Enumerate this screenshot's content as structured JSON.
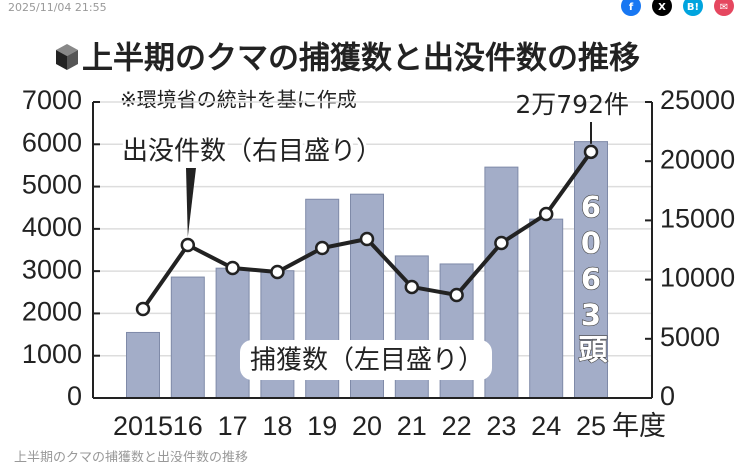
{
  "header": {
    "timestamp": "2025/11/04 21:55",
    "share_buttons": [
      "f",
      "X",
      "B!",
      "✉"
    ]
  },
  "chart_data": {
    "type": "bar_line",
    "title": "上半期のクマの捕獲数と出没件数の推移",
    "subtitle": "※環境省の統計を基に作成",
    "x_label": "年度",
    "categories": [
      "2015",
      "16",
      "17",
      "18",
      "19",
      "20",
      "21",
      "22",
      "23",
      "24",
      "25"
    ],
    "series": [
      {
        "name": "捕獲数（左目盛り）",
        "type": "bar",
        "color": "#a3adc8",
        "axis": "y",
        "values": [
          1550,
          2860,
          3070,
          3010,
          4700,
          4820,
          3360,
          3170,
          5460,
          4230,
          6063
        ],
        "value_labels": [
          null,
          null,
          null,
          null,
          null,
          null,
          null,
          null,
          null,
          null,
          "6063頭"
        ]
      },
      {
        "name": "出没件数（右目盛り）",
        "type": "line",
        "color": "#222222",
        "axis": "y2",
        "values": [
          7520,
          12920,
          10980,
          10640,
          12670,
          13430,
          9380,
          8700,
          13090,
          15540,
          20792
        ],
        "value_labels": [
          null,
          null,
          null,
          null,
          null,
          null,
          null,
          null,
          null,
          null,
          "2万792件"
        ]
      }
    ],
    "ylim": [
      0,
      7000
    ],
    "yticks": [
      0,
      1000,
      2000,
      3000,
      4000,
      5000,
      6000,
      7000
    ],
    "y2lim": [
      0,
      25000
    ],
    "y2ticks": [
      0,
      5000,
      10000,
      15000,
      20000,
      25000
    ],
    "grid": true
  },
  "caption": "上半期のクマの捕獲数と出没件数の推移"
}
